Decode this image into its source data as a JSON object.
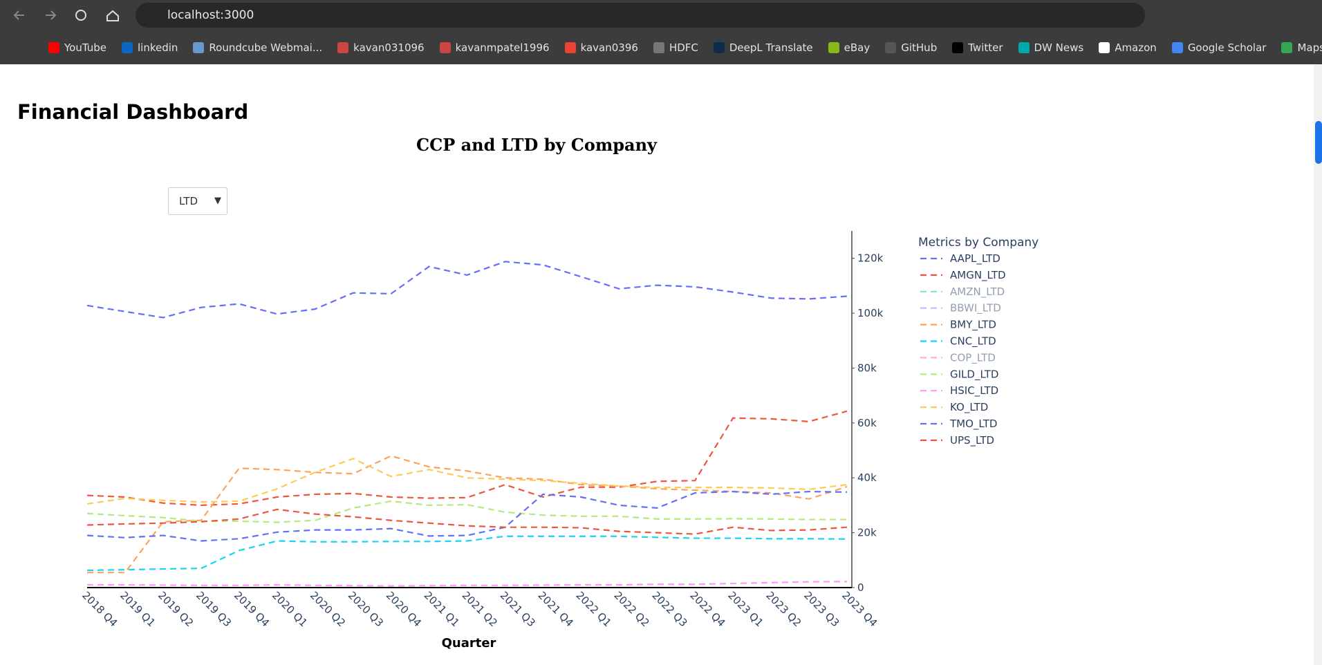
{
  "browser": {
    "url": "localhost:3000",
    "bookmarks": [
      "YouTube",
      "linkedin",
      "Roundcube Webmai...",
      "kavan031096",
      "kavanmpatel1996",
      "kavan0396",
      "HDFC",
      "DeepL Translate",
      "eBay",
      "GitHub",
      "Twitter",
      "DW News",
      "Amazon",
      "Google Scholar",
      "Maps"
    ]
  },
  "page": {
    "heading": "Financial Dashboard",
    "dropdown": "LTD"
  },
  "chart_data": {
    "type": "line",
    "title": "CCP and LTD by Company",
    "x_label": "Quarter",
    "legend_title": "Metrics by Company",
    "legend": "right",
    "y_axis_side": "right",
    "dash": "dash",
    "categories": [
      "2018 Q4",
      "2019 Q1",
      "2019 Q2",
      "2019 Q3",
      "2019 Q4",
      "2020 Q1",
      "2020 Q2",
      "2020 Q3",
      "2020 Q4",
      "2021 Q1",
      "2021 Q2",
      "2021 Q3",
      "2021 Q4",
      "2022 Q1",
      "2022 Q2",
      "2022 Q3",
      "2022 Q4",
      "2023 Q1",
      "2023 Q2",
      "2023 Q3",
      "2023 Q4"
    ],
    "ylim": [
      0,
      130000
    ],
    "yticks": [
      0,
      {
        "value": 20000,
        "label": "20k"
      },
      {
        "value": 40000,
        "label": "40k"
      },
      {
        "value": 60000,
        "label": "60k"
      },
      {
        "value": 80000,
        "label": "80k"
      },
      {
        "value": 100000,
        "label": "100k"
      },
      {
        "value": 120000,
        "label": "120k"
      }
    ],
    "series": [
      {
        "name": "AAPL_LTD",
        "color": "#636efa",
        "visible": true,
        "values": [
          102800,
          100600,
          98400,
          102100,
          103400,
          99700,
          101500,
          107400,
          107100,
          117000,
          113900,
          118800,
          117600,
          113300,
          108900,
          110200,
          109600,
          107700,
          105500,
          105200,
          106200
        ]
      },
      {
        "name": "AMGN_LTD",
        "color": "#EF553B",
        "visible": true,
        "values": [
          33600,
          33000,
          30800,
          30000,
          30500,
          33000,
          34000,
          34300,
          33000,
          32600,
          32800,
          37500,
          33000,
          36600,
          36600,
          38700,
          39000,
          61800,
          61500,
          60500,
          64300
        ]
      },
      {
        "name": "AMZN_LTD",
        "color": "#00cc96",
        "visible": false
      },
      {
        "name": "BBWI_LTD",
        "color": "#ab63fa",
        "visible": false
      },
      {
        "name": "BMY_LTD",
        "color": "#FFA15A",
        "visible": true,
        "values": [
          5500,
          5500,
          24000,
          24500,
          43500,
          43000,
          42000,
          41500,
          48000,
          44000,
          42500,
          40000,
          39500,
          37500,
          37000,
          36000,
          35500,
          35000,
          34500,
          32300,
          36800
        ]
      },
      {
        "name": "CNC_LTD",
        "color": "#19d3f3",
        "visible": true,
        "values": [
          6300,
          6500,
          6800,
          7000,
          13500,
          17000,
          16700,
          16700,
          16800,
          16800,
          17000,
          18700,
          18700,
          18700,
          18700,
          18300,
          18000,
          18000,
          17800,
          17800,
          17700
        ]
      },
      {
        "name": "COP_LTD",
        "color": "#FF6692",
        "visible": false
      },
      {
        "name": "GILD_LTD",
        "color": "#B6E880",
        "visible": true,
        "values": [
          27000,
          26200,
          25500,
          24200,
          24200,
          23800,
          24500,
          29000,
          31500,
          30000,
          30200,
          27500,
          26400,
          26000,
          26000,
          25000,
          25000,
          25100,
          25000,
          24800,
          24800
        ]
      },
      {
        "name": "HSIC_LTD",
        "color": "#FF97FF",
        "visible": true,
        "values": [
          1000,
          1000,
          900,
          800,
          800,
          1000,
          800,
          700,
          600,
          700,
          800,
          800,
          900,
          1000,
          1000,
          1200,
          1200,
          1500,
          1800,
          2100,
          2200
        ]
      },
      {
        "name": "KO_LTD",
        "color": "#FECB52",
        "visible": true,
        "values": [
          30500,
          32500,
          31800,
          31200,
          31500,
          36000,
          42000,
          47000,
          40500,
          43000,
          40000,
          39500,
          39000,
          38000,
          37000,
          36500,
          36500,
          36500,
          36300,
          35800,
          37500
        ]
      },
      {
        "name": "TMO_LTD",
        "color": "#636efa",
        "visible": true,
        "values": [
          19000,
          18200,
          19000,
          17000,
          17800,
          20200,
          21000,
          21000,
          21500,
          18800,
          19000,
          22000,
          34000,
          33000,
          30000,
          29000,
          34500,
          35000,
          34000,
          35000,
          34800
        ]
      },
      {
        "name": "UPS_LTD",
        "color": "#EF553B",
        "visible": true,
        "values": [
          22800,
          23200,
          23500,
          24000,
          25000,
          28500,
          26800,
          25800,
          24500,
          23500,
          22500,
          22000,
          22000,
          21800,
          20500,
          20000,
          19500,
          22000,
          20800,
          21000,
          22000
        ]
      }
    ]
  }
}
